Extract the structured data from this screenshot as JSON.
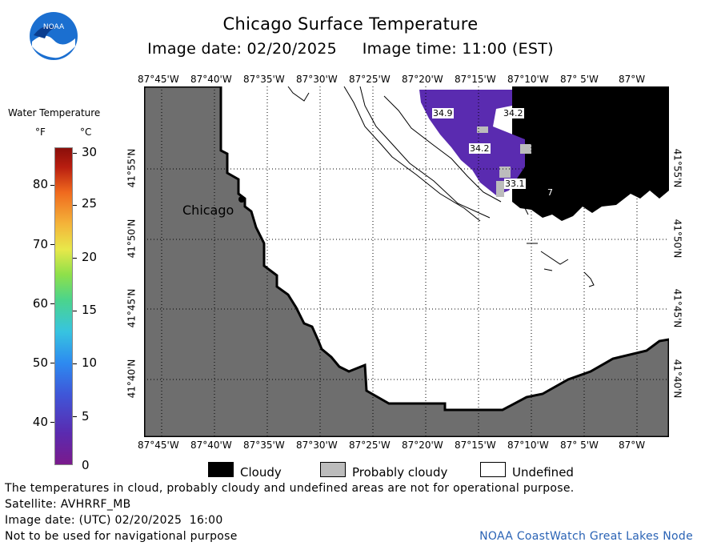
{
  "header": {
    "title": "Chicago Surface Temperature",
    "subtitle": "Image date: 02/20/2025     Image time: 11:00 (EST)"
  },
  "logo": {
    "text": "NOAA",
    "icon": "noaa-logo-icon"
  },
  "legend": {
    "title": "Water Temperature",
    "unit_f": "°F",
    "unit_c": "°C",
    "f_ticks": [
      "80",
      "70",
      "60",
      "50",
      "40"
    ],
    "c_ticks": [
      "30",
      "25",
      "20",
      "15",
      "10",
      "5",
      "0"
    ]
  },
  "map": {
    "lon_labels": [
      "87°45'W",
      "87°40'W",
      "87°35'W",
      "87°30'W",
      "87°25'W",
      "87°20'W",
      "87°15'W",
      "87°10'W",
      "87° 5'W",
      "87°W"
    ],
    "lat_labels": [
      "41°55'N",
      "41°50'N",
      "41°45'N",
      "41°40'N"
    ],
    "city_label": "Chicago",
    "temp_labels": [
      "34.9",
      "34.2",
      "34.2",
      "33.1",
      "7"
    ],
    "colors": {
      "land": "#6e6e6e",
      "cloudy": "#000000",
      "probably_cloudy": "#bcbcbc",
      "water_cold": "#5a2bb0",
      "undefined": "#ffffff"
    }
  },
  "bottom_legend": {
    "cloudy": "Cloudy",
    "probably_cloudy": "Probably cloudy",
    "undefined": "Undefined"
  },
  "footer": {
    "line1": "The temperatures in cloud, probably cloudy and undefined areas are not for operational purpose.",
    "line2": "Satellite: AVHRRF_MB",
    "line3": "Image date: (UTC) 02/20/2025  16:00",
    "line4": "Not to be used for navigational purpose",
    "credit": "NOAA CoastWatch Great Lakes Node"
  }
}
